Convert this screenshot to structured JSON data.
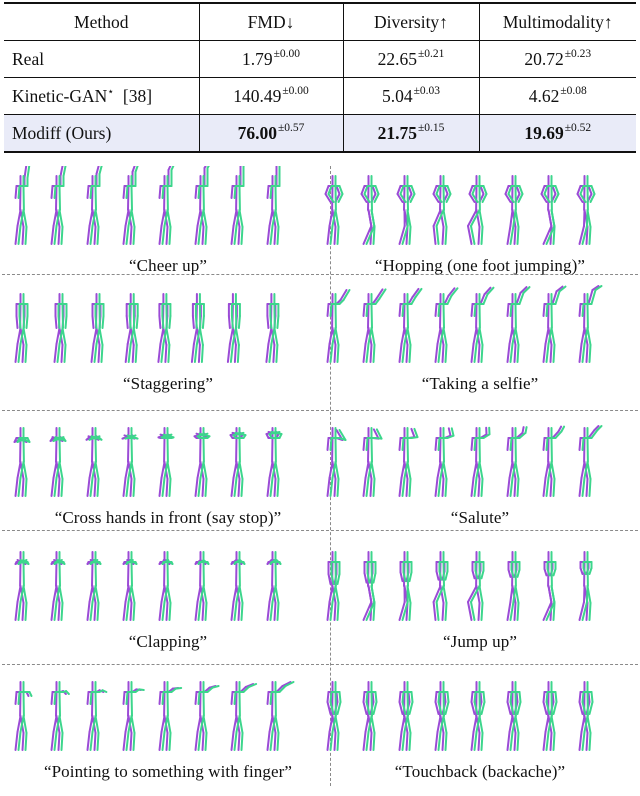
{
  "table": {
    "headers": [
      "Method",
      "FMD↓",
      "Diversity↑",
      "Multimodality↑"
    ],
    "rows": [
      {
        "method": "Real",
        "method_ref": "",
        "fmd": "1.79",
        "fmd_std": "±0.00",
        "div": "22.65",
        "div_std": "±0.21",
        "mm": "20.72",
        "mm_std": "±0.23"
      },
      {
        "method": "Kinetic-GAN",
        "method_sup": "⋆",
        "method_ref": "[38]",
        "fmd": "140.49",
        "fmd_std": "±0.00",
        "div": "5.04",
        "div_std": "±0.03",
        "mm": "4.62",
        "mm_std": "±0.08"
      },
      {
        "method": "Modiff (Ours)",
        "method_ref": "",
        "fmd": "76.00",
        "fmd_std": "±0.57",
        "div": "21.75",
        "div_std": "±0.15",
        "mm": "19.69",
        "mm_std": "±0.52"
      }
    ]
  },
  "figure": {
    "colors": {
      "green": "#3dd68c",
      "purple": "#9b4bd6",
      "divider": "#8a8a8a",
      "highlight": "#e9ebf8"
    },
    "panels": [
      {
        "caption": "“Cheer up”",
        "motion": "cheer"
      },
      {
        "caption": "“Hopping (one foot jumping)”",
        "motion": "hop"
      },
      {
        "caption": "“Staggering”",
        "motion": "stagger"
      },
      {
        "caption": "“Taking a selfie”",
        "motion": "selfie"
      },
      {
        "caption": "“Cross hands in front (say stop)”",
        "motion": "cross"
      },
      {
        "caption": "“Salute”",
        "motion": "salute"
      },
      {
        "caption": "“Clapping”",
        "motion": "clap"
      },
      {
        "caption": "“Jump up”",
        "motion": "jump"
      },
      {
        "caption": "“Pointing to something with finger”",
        "motion": "point"
      },
      {
        "caption": "“Touchback (backache)”",
        "motion": "back"
      }
    ]
  }
}
